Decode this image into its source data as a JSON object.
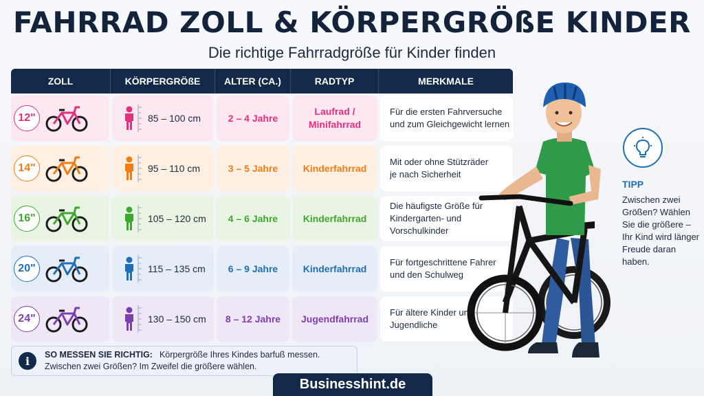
{
  "title": "FAHRRAD ZOLL & KÖRPERGRÖßE KINDER",
  "subtitle": "Die richtige Fahrradgröße für Kinder finden",
  "table": {
    "headers": [
      "ZOLL",
      "KÖRPERGRÖßE",
      "ALTER (CA.)",
      "RADTYP",
      "MERKMALE"
    ],
    "rows": [
      {
        "zoll": "12\"",
        "height": "85 – 100 cm",
        "age": "2 – 4 Jahre",
        "type_line1": "Laufrad /",
        "type_line2": "Minifahrrad",
        "feat_line1": "Für die ersten Fahrversuche",
        "feat_line2": "und zum Gleichgewicht lernen",
        "feat_line3": "",
        "color": "#e0317e",
        "tint": "#fde7f0"
      },
      {
        "zoll": "14\"",
        "height": "95 – 110 cm",
        "age": "3 – 5 Jahre",
        "type_line1": "Kinderfahrrad",
        "type_line2": "",
        "feat_line1": "Mit oder ohne Stützräder",
        "feat_line2": "je nach Sicherheit",
        "feat_line3": "",
        "color": "#ee7d16",
        "tint": "#fdf0e2"
      },
      {
        "zoll": "16\"",
        "height": "105 – 120 cm",
        "age": "4 – 6 Jahre",
        "type_line1": "Kinderfahrrad",
        "type_line2": "",
        "feat_line1": "Die häufigste Größe für",
        "feat_line2": "Kindergarten- und",
        "feat_line3": "Vorschulkinder",
        "color": "#3fa62f",
        "tint": "#e9f5e3"
      },
      {
        "zoll": "20\"",
        "height": "115 – 135 cm",
        "age": "6 – 9 Jahre",
        "type_line1": "Kinderfahrrad",
        "type_line2": "",
        "feat_line1": "Für fortgeschrittene Fahrer",
        "feat_line2": "und den Schulweg",
        "feat_line3": "",
        "color": "#1f6fb8",
        "tint": "#e5eef8"
      },
      {
        "zoll": "24\"",
        "height": "130 – 150 cm",
        "age": "8 – 12 Jahre",
        "type_line1": "Jugendfahrrad",
        "type_line2": "",
        "feat_line1": "Für ältere Kinder und",
        "feat_line2": "Jugendliche",
        "feat_line3": "",
        "color": "#7b3fb0",
        "tint": "#efe6f6"
      }
    ]
  },
  "info": {
    "label": "SO MESSEN SIE RICHTIG:",
    "line1": "Körpergröße Ihres Kindes barfuß messen.",
    "line2": "Zwischen zwei Größen? Im Zweifel die größere wählen."
  },
  "tipp": {
    "title": "TIPP",
    "text": "Zwischen zwei Größen? Wählen Sie die größere – Ihr Kind wird länger Freude daran haben.",
    "icon": "lightbulb-icon"
  },
  "brand": "Businesshint.de",
  "icons": {
    "bike": "bicycle-icon",
    "kid": "child-silhouette-icon",
    "info": "info-icon"
  }
}
